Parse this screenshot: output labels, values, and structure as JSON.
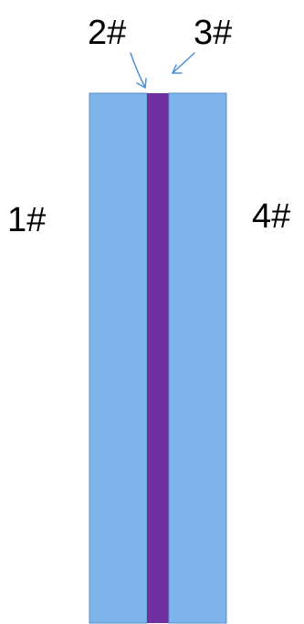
{
  "labels": {
    "one": "1#",
    "two": "2#",
    "three": "3#",
    "four": "4#"
  },
  "colors": {
    "outer_layer": "#7db4ea",
    "outer_border": "#5b8fc9",
    "middle_layer": "#7030a0",
    "arrow": "#4a90d9",
    "text": "#000000"
  }
}
